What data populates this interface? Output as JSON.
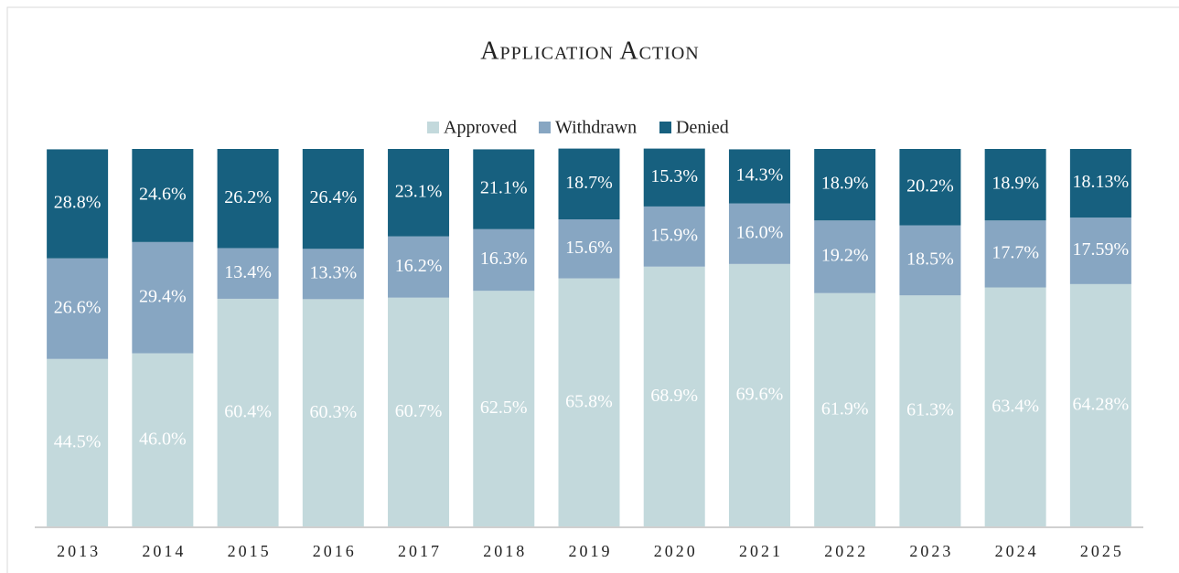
{
  "chart_data": {
    "type": "stacked_bar",
    "title": "Application Action",
    "categories": [
      "2013",
      "2014",
      "2015",
      "2016",
      "2017",
      "2018",
      "2019",
      "2020",
      "2021",
      "2022",
      "2023",
      "2024",
      "2025"
    ],
    "ylim": [
      0,
      100
    ],
    "legend": "top",
    "series": [
      {
        "name": "Approved",
        "color": "#c3d9dc",
        "values": [
          44.5,
          46.0,
          60.4,
          60.3,
          60.7,
          62.5,
          65.8,
          68.9,
          69.6,
          61.9,
          61.3,
          63.4,
          64.28
        ],
        "value_labels": [
          "44.5%",
          "46.0%",
          "60.4%",
          "60.3%",
          "60.7%",
          "62.5%",
          "65.8%",
          "68.9%",
          "69.6%",
          "61.9%",
          "61.3%",
          "63.4%",
          "64.28%"
        ]
      },
      {
        "name": "Withdrawn",
        "color": "#87a6c2",
        "values": [
          26.6,
          29.4,
          13.4,
          13.3,
          16.2,
          16.3,
          15.6,
          15.9,
          16.0,
          19.2,
          18.5,
          17.7,
          17.59
        ],
        "value_labels": [
          "26.6%",
          "29.4%",
          "13.4%",
          "13.3%",
          "16.2%",
          "16.3%",
          "15.6%",
          "15.9%",
          "16.0%",
          "19.2%",
          "18.5%",
          "17.7%",
          "17.59%"
        ]
      },
      {
        "name": "Denied",
        "color": "#17607f",
        "values": [
          28.8,
          24.6,
          26.2,
          26.4,
          23.1,
          21.1,
          18.7,
          15.3,
          14.3,
          18.9,
          20.2,
          18.9,
          18.13
        ],
        "value_labels": [
          "28.8%",
          "24.6%",
          "26.2%",
          "26.4%",
          "23.1%",
          "21.1%",
          "18.7%",
          "15.3%",
          "14.3%",
          "18.9%",
          "20.2%",
          "18.9%",
          "18.13%"
        ]
      }
    ]
  }
}
